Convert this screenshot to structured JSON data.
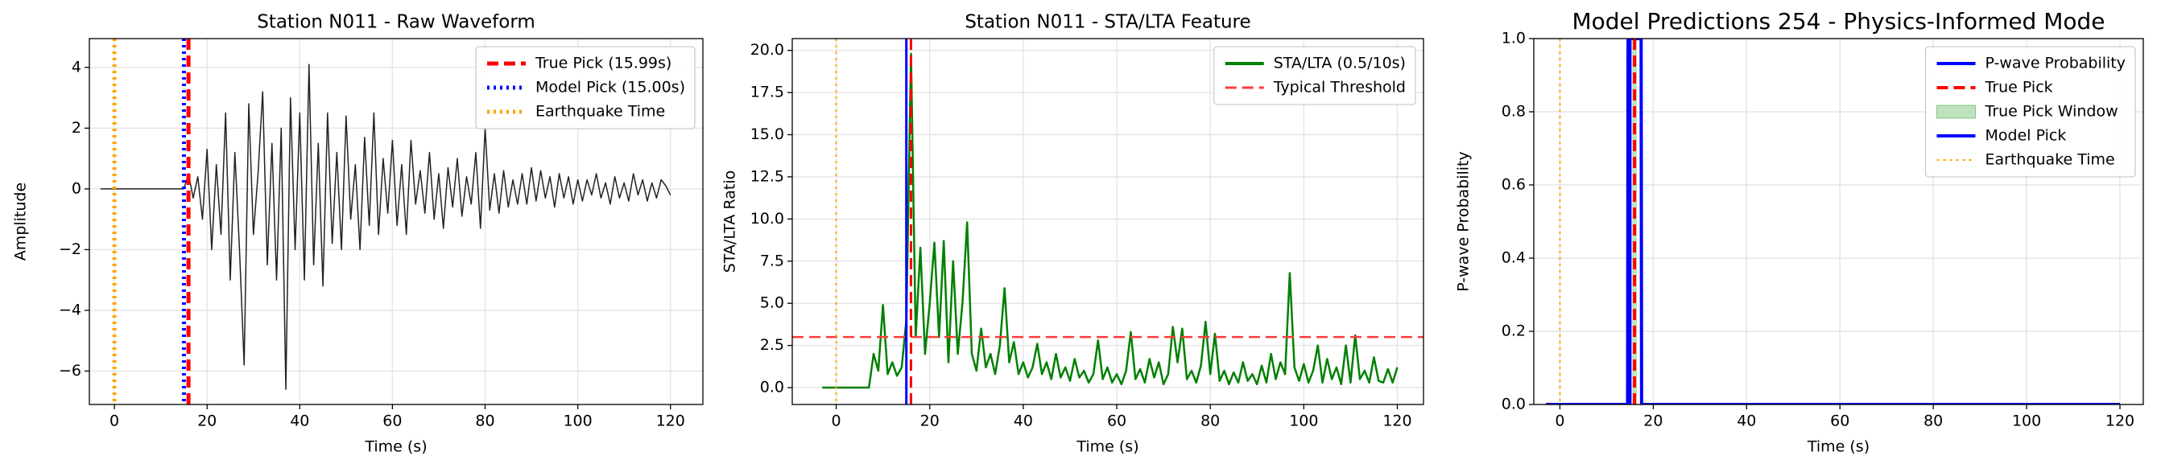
{
  "chart_data": [
    {
      "type": "line",
      "title": "Station N011 - Raw Waveform",
      "xlabel": "Time (s)",
      "ylabel": "Amplitude",
      "xlim": [
        -5.4,
        127
      ],
      "ylim": [
        -7.1,
        4.95
      ],
      "xticks": [
        0,
        20,
        40,
        60,
        80,
        100,
        120
      ],
      "yticks": [
        {
          "value": -6,
          "label": "−6"
        },
        {
          "value": -4,
          "label": "−4"
        },
        {
          "value": -2,
          "label": "−2"
        },
        0,
        2,
        4
      ],
      "grid": true,
      "legend": "upper right",
      "x": [
        -3,
        15,
        16,
        17,
        18,
        19,
        20,
        21,
        22,
        23,
        24,
        25,
        26,
        27,
        28,
        29,
        30,
        31,
        32,
        33,
        34,
        35,
        36,
        37,
        38,
        39,
        40,
        41,
        42,
        43,
        44,
        45,
        46,
        47,
        48,
        49,
        50,
        51,
        52,
        53,
        54,
        55,
        56,
        57,
        58,
        59,
        60,
        61,
        62,
        63,
        64,
        65,
        66,
        67,
        68,
        69,
        70,
        71,
        72,
        73,
        74,
        75,
        76,
        77,
        78,
        79,
        80,
        81,
        82,
        83,
        84,
        85,
        86,
        87,
        88,
        89,
        90,
        91,
        92,
        93,
        94,
        95,
        96,
        97,
        98,
        99,
        100,
        101,
        102,
        103,
        104,
        105,
        106,
        107,
        108,
        109,
        110,
        111,
        112,
        113,
        114,
        115,
        116,
        117,
        118,
        119,
        120
      ],
      "series": [
        {
          "color": "#222222",
          "values": [
            0,
            0,
            0.5,
            -0.3,
            0.4,
            -1,
            1.3,
            -2,
            0.8,
            -1.5,
            2.5,
            -3,
            1.2,
            -2,
            -5.8,
            2.8,
            -1.5,
            0.5,
            3.2,
            -2.5,
            1.5,
            -3,
            2,
            -6.6,
            3,
            -2,
            2.5,
            -3,
            4.1,
            -2.5,
            1.5,
            -3.2,
            2.5,
            -1.8,
            1.2,
            -2,
            2.4,
            -1,
            0.8,
            -2,
            1.7,
            -1.2,
            2.5,
            -1.5,
            1,
            -0.8,
            1.6,
            -1.2,
            0.8,
            -1.5,
            1.6,
            -0.5,
            0.6,
            -0.8,
            1.2,
            -1,
            0.5,
            -1.3,
            0.7,
            -0.6,
            1,
            -0.9,
            0.4,
            -0.5,
            1.2,
            -1.3,
            2,
            -0.7,
            0.5,
            -0.8,
            0.6,
            -0.6,
            0.3,
            -0.5,
            0.5,
            -0.5,
            0.7,
            -0.4,
            0.6,
            -0.3,
            0.4,
            -0.6,
            0.5,
            -0.3,
            0.4,
            -0.5,
            0.3,
            -0.4,
            0.3,
            -0.2,
            0.5,
            -0.3,
            0.2,
            -0.5,
            0.4,
            -0.3,
            0.2,
            -0.4,
            0.5,
            -0.2,
            0.3,
            -0.4,
            0.2,
            -0.3,
            0.3,
            0.1,
            -0.2
          ]
        }
      ],
      "overlays": [
        {
          "kind": "vline",
          "name": "True Pick (15.99s)",
          "x": 15.99,
          "color": "#ff0000",
          "style": "dashed"
        },
        {
          "kind": "vline",
          "name": "Model Pick (15.00s)",
          "x": 15.0,
          "color": "#0000ff",
          "style": "dotted"
        },
        {
          "kind": "vline",
          "name": "Earthquake Time",
          "x": 0,
          "color": "#ffa500",
          "style": "dotted"
        }
      ]
    },
    {
      "type": "line",
      "title": "Station N011 - STA/LTA Feature",
      "xlabel": "Time (s)",
      "ylabel": "STA/LTA Ratio",
      "xlim": [
        -9.4,
        125.6
      ],
      "ylim": [
        -1.0,
        20.7
      ],
      "xticks": [
        0,
        20,
        40,
        60,
        80,
        100,
        120
      ],
      "yticks": [
        {
          "value": 0,
          "label": "0.0"
        },
        {
          "value": 2.5,
          "label": "2.5"
        },
        {
          "value": 5,
          "label": "5.0"
        },
        {
          "value": 7.5,
          "label": "7.5"
        },
        {
          "value": 10,
          "label": "10.0"
        },
        {
          "value": 12.5,
          "label": "12.5"
        },
        {
          "value": 15,
          "label": "15.0"
        },
        {
          "value": 17.5,
          "label": "17.5"
        },
        {
          "value": 20,
          "label": "20.0"
        }
      ],
      "grid": true,
      "legend": "upper right",
      "x": [
        -3,
        7,
        8,
        9,
        10,
        11,
        12,
        13,
        14,
        15,
        16,
        17,
        18,
        19,
        20,
        21,
        22,
        23,
        24,
        25,
        26,
        27,
        28,
        29,
        30,
        31,
        32,
        33,
        34,
        35,
        36,
        37,
        38,
        39,
        40,
        41,
        42,
        43,
        44,
        45,
        46,
        47,
        48,
        49,
        50,
        51,
        52,
        53,
        54,
        55,
        56,
        57,
        58,
        59,
        60,
        61,
        62,
        63,
        64,
        65,
        66,
        67,
        68,
        69,
        70,
        71,
        72,
        73,
        74,
        75,
        76,
        77,
        78,
        79,
        80,
        81,
        82,
        83,
        84,
        85,
        86,
        87,
        88,
        89,
        90,
        91,
        92,
        93,
        94,
        95,
        96,
        97,
        98,
        99,
        100,
        101,
        102,
        103,
        104,
        105,
        106,
        107,
        108,
        109,
        110,
        111,
        112,
        113,
        114,
        115,
        116,
        117,
        118,
        119,
        120
      ],
      "series": [
        {
          "name": "STA/LTA (0.5/10s)",
          "color": "#008000",
          "values": [
            0,
            0,
            2,
            1,
            4.9,
            0.8,
            1.5,
            0.7,
            1.2,
            4,
            19.8,
            3,
            8.3,
            2,
            5,
            8.6,
            3,
            8.7,
            1.5,
            7.5,
            2,
            5,
            9.8,
            2,
            1,
            3.5,
            1.2,
            2,
            0.8,
            2.5,
            5.9,
            1.5,
            2.7,
            0.8,
            1.5,
            0.6,
            1.2,
            2.6,
            0.8,
            1.5,
            0.5,
            2,
            0.6,
            1.2,
            0.4,
            1.7,
            0.6,
            1,
            0.3,
            0.8,
            2.8,
            0.5,
            1.2,
            0.3,
            0.8,
            0.2,
            1,
            3.3,
            0.5,
            1.1,
            0.3,
            1.7,
            0.6,
            1.5,
            0.2,
            0.8,
            3.6,
            1.5,
            3.5,
            0.5,
            1,
            0.3,
            1.3,
            3.9,
            0.8,
            3.2,
            0.4,
            1,
            0.2,
            0.9,
            0.3,
            1.5,
            0.4,
            0.8,
            0.2,
            1.3,
            0.3,
            2,
            0.5,
            1.5,
            0.8,
            6.8,
            1.2,
            0.4,
            1.4,
            0.3,
            1,
            2.5,
            0.3,
            1.7,
            0.5,
            1.2,
            0.2,
            2.5,
            0.3,
            3.1,
            0.5,
            1,
            0.3,
            1.8,
            0.4,
            0.3,
            1.1,
            0.3,
            1.2
          ]
        }
      ],
      "overlays": [
        {
          "kind": "hline",
          "name": "Typical Threshold",
          "y": 3,
          "color": "#ff3b3b",
          "style": "dashed"
        },
        {
          "kind": "vline",
          "x": 15.0,
          "color": "#0000ff",
          "style": "solid"
        },
        {
          "kind": "vline",
          "x": 15.99,
          "color": "#ff0000",
          "style": "dashed"
        },
        {
          "kind": "vline",
          "x": 0,
          "color": "#ffa500",
          "style": "dotted"
        }
      ]
    },
    {
      "type": "line",
      "title": "Model Predictions 254 - Physics-Informed Mode",
      "xlabel": "Time (s)",
      "ylabel": "P-wave Probability",
      "xlim": [
        -5.6,
        125
      ],
      "ylim": [
        0,
        1
      ],
      "xticks": [
        0,
        20,
        40,
        60,
        80,
        100,
        120
      ],
      "yticks": [
        {
          "value": 0,
          "label": "0.0"
        },
        {
          "value": 0.2,
          "label": "0.2"
        },
        {
          "value": 0.4,
          "label": "0.4"
        },
        {
          "value": 0.6,
          "label": "0.6"
        },
        {
          "value": 0.8,
          "label": "0.8"
        },
        {
          "value": 1,
          "label": "1.0"
        }
      ],
      "grid": true,
      "legend": "upper right",
      "x": [
        -3,
        14.5,
        14.6,
        17.4,
        17.5,
        120
      ],
      "series": [
        {
          "name": "P-wave Probability",
          "color": "#0000ff",
          "values": [
            0,
            0,
            1,
            1,
            0,
            0
          ]
        }
      ],
      "overlays": [
        {
          "kind": "vline",
          "name": "True Pick",
          "x": 15.99,
          "color": "#ff0000",
          "style": "dashed"
        },
        {
          "kind": "span",
          "name": "True Pick Window",
          "range": [
            15.49,
            16.49
          ],
          "color": "#2ca02c"
        },
        {
          "kind": "vline",
          "name": "Model Pick",
          "x": 15.0,
          "color": "#0000ff",
          "style": "solid"
        },
        {
          "kind": "vline",
          "name": "Earthquake Time",
          "x": 0,
          "color": "#ffa500",
          "style": "dotted"
        }
      ]
    }
  ]
}
